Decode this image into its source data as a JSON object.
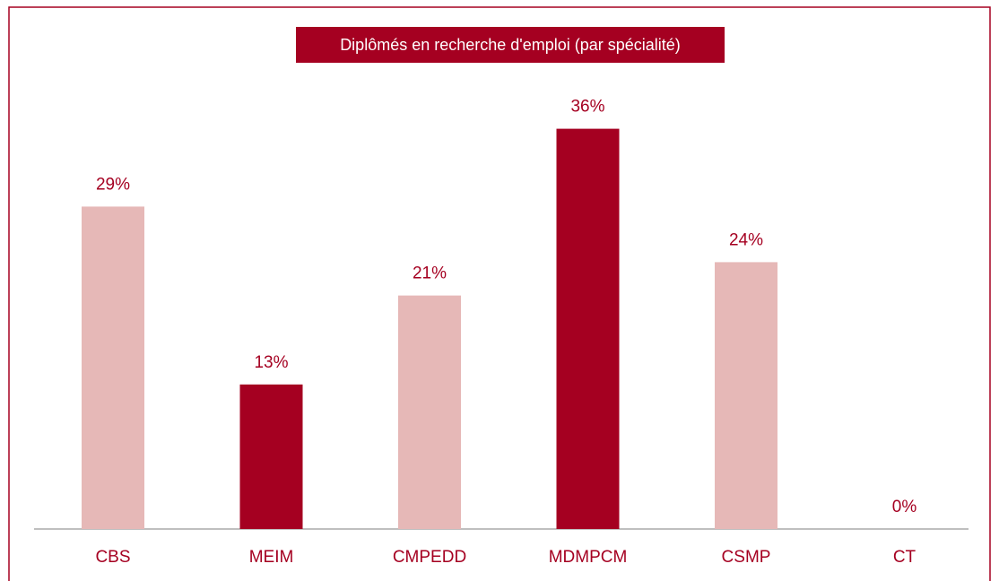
{
  "chart_data": {
    "type": "bar",
    "title": "Diplômés en recherche d'emploi (par spécialité)",
    "categories": [
      "CBS",
      "MEIM",
      "CMPEDD",
      "MDMPCM",
      "CSMP",
      "CT"
    ],
    "values": [
      29,
      13,
      21,
      36,
      24,
      0
    ],
    "value_labels": [
      "29%",
      "13%",
      "21%",
      "36%",
      "24%",
      "0%"
    ],
    "colors": [
      "#e6b8b7",
      "#a50021",
      "#e6b8b7",
      "#a50021",
      "#e6b8b7",
      "#e6b8b7"
    ]
  }
}
